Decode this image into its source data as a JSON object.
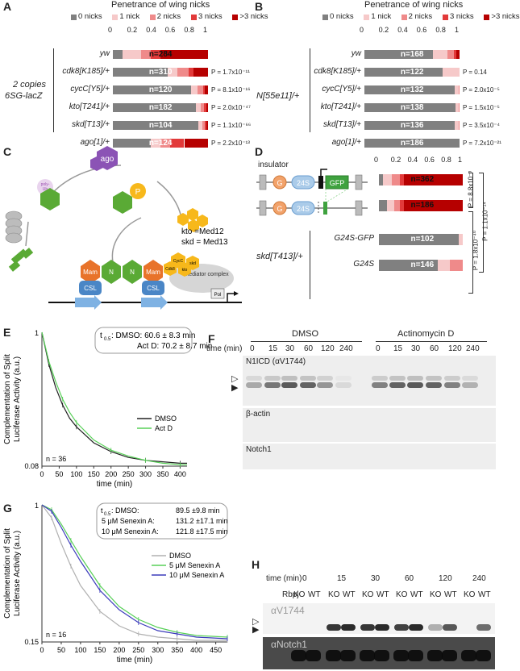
{
  "panelA": {
    "letter": "A",
    "title": "Penetrance of wing nicks",
    "legend": [
      "0 nicks",
      "1 nick",
      "2 nicks",
      "3 nicks",
      ">3 nicks"
    ],
    "legend_colors": [
      "#808080",
      "#f6c9c9",
      "#ef8a8a",
      "#e23a3a",
      "#b60000"
    ],
    "ticks": [
      "0",
      "0.2",
      "0.4",
      "0.6",
      "0.8",
      "1"
    ],
    "group_label_line1": "2 copies",
    "group_label_line2": "6SG-lacZ",
    "rows": [
      {
        "genotype": "yw",
        "n": "n=284",
        "fractions": [
          0.1,
          0.2,
          0.1,
          0.1,
          0.5
        ],
        "p": ""
      },
      {
        "genotype": "cdk8[K185]/+",
        "n": "n=310",
        "fractions": [
          0.58,
          0.1,
          0.12,
          0.05,
          0.15
        ],
        "p": "P = 1.7x10⁻¹¹"
      },
      {
        "genotype": "cycC[Y5]/+",
        "n": "n=120",
        "fractions": [
          0.82,
          0.07,
          0.06,
          0.02,
          0.03
        ],
        "p": "P = 8.1x10⁻¹⁶"
      },
      {
        "genotype": "kto[T241]/+",
        "n": "n=182",
        "fractions": [
          0.87,
          0.05,
          0.04,
          0.02,
          0.02
        ],
        "p": "P = 2.0x10⁻⁴⁷"
      },
      {
        "genotype": "skd[T13]/+",
        "n": "n=104",
        "fractions": [
          0.9,
          0.04,
          0.03,
          0.01,
          0.02
        ],
        "p": "P = 1.1x10⁻⁶⁶"
      },
      {
        "genotype": "ago[1]/+",
        "n": "n=124",
        "fractions": [
          0.4,
          0.1,
          0.1,
          0.15,
          0.25
        ],
        "p": "P = 2.2x10⁻¹³"
      }
    ]
  },
  "panelB": {
    "letter": "B",
    "title": "Penetrance of wing nicks",
    "legend": [
      "0 nicks",
      "1 nick",
      "2 nicks",
      "3 nicks",
      ">3 nicks"
    ],
    "ticks": [
      "0",
      "0.2",
      "0.4",
      "0.6",
      "0.8",
      "1"
    ],
    "group_label": "N[55e11]/+",
    "rows": [
      {
        "genotype": "yw",
        "n": "n=168",
        "fractions": [
          0.72,
          0.15,
          0.07,
          0.03,
          0.03
        ],
        "p": ""
      },
      {
        "genotype": "cdk8[K185]/+",
        "n": "n=122",
        "fractions": [
          0.82,
          0.18,
          0,
          0,
          0
        ],
        "p": "P = 0.14"
      },
      {
        "genotype": "cycC[Y5]/+",
        "n": "n=132",
        "fractions": [
          0.95,
          0.04,
          0.01,
          0,
          0
        ],
        "p": "P = 2.0x10⁻⁵"
      },
      {
        "genotype": "kto[T241]/+",
        "n": "n=138",
        "fractions": [
          0.96,
          0.03,
          0.01,
          0,
          0
        ],
        "p": "P = 1.5x10⁻⁵"
      },
      {
        "genotype": "skd[T13]/+",
        "n": "n=136",
        "fractions": [
          0.95,
          0.04,
          0.01,
          0,
          0
        ],
        "p": "P = 3.5x10⁻⁴"
      },
      {
        "genotype": "ago[1]/+",
        "n": "n=186",
        "fractions": [
          1.0,
          0,
          0,
          0,
          0
        ],
        "p": "P = 7.2x10⁻²¹"
      }
    ]
  },
  "panelC": {
    "letter": "C",
    "labels": {
      "ago": "ago",
      "p": "P",
      "polyub": "poly-Ub",
      "kto_eq": "kto =Med12",
      "skd_eq": "skd = Med13",
      "mam": "Mam",
      "n": "N",
      "csl": "CSL",
      "cycc": "CycC",
      "cdk8": "Cdk8",
      "skd": "skd",
      "kto": "kto",
      "mediator": "Mediator complex",
      "pol": "Pol"
    }
  },
  "panelD": {
    "letter": "D",
    "insulator": "insulator",
    "g": "G",
    "s24": "24S",
    "gfp": "GFP",
    "ticks": [
      "0",
      "0.2",
      "0.4",
      "0.6",
      "0.8",
      "1"
    ],
    "group_label": "skd[T413]/+",
    "rows": [
      {
        "label": "",
        "n": "n=362",
        "fractions": [
          0.05,
          0.1,
          0.1,
          0.05,
          0.7
        ]
      },
      {
        "label": "",
        "n": "n=186",
        "fractions": [
          0.1,
          0.08,
          0.07,
          0.05,
          0.7
        ]
      },
      {
        "label": "G24S-GFP",
        "n": "n=102",
        "fractions": [
          0.95,
          0.05,
          0,
          0,
          0
        ]
      },
      {
        "label": "G24S",
        "n": "n=146",
        "fractions": [
          0.7,
          0.15,
          0.15,
          0,
          0
        ]
      }
    ],
    "pvals": [
      "P = 8.8x10⁻³",
      "P = 1.1x10⁻¹⁴",
      "P = 1.8x10⁻⁴⁰"
    ]
  },
  "panelE": {
    "letter": "E",
    "chart_data": {
      "type": "line",
      "ylabel": "Complementation of Split Luciferase Activity (a.u.)",
      "xlabel": "time (min)",
      "xlim": [
        0,
        420
      ],
      "ylim": [
        0.08,
        1
      ],
      "xticks": [
        "0",
        "50",
        "100",
        "150",
        "200",
        "250",
        "300",
        "350",
        "400"
      ],
      "ytick_top": "1",
      "ytick_bottom": "0.08",
      "annotation_t": "t",
      "annotation_sub": "0.5",
      "annotation_lines": [
        ": DMSO: 60.6 ± 8.3  min",
        "Act D:  70.2 ± 8.7 min"
      ],
      "n_label": "n = 36",
      "series": [
        {
          "name": "DMSO",
          "color": "#222222",
          "x": [
            0,
            20,
            40,
            60,
            80,
            100,
            150,
            200,
            250,
            300,
            350,
            400,
            420
          ],
          "y": [
            1,
            0.78,
            0.62,
            0.5,
            0.41,
            0.35,
            0.24,
            0.18,
            0.14,
            0.12,
            0.11,
            0.1,
            0.1
          ]
        },
        {
          "name": "Act D",
          "color": "#58d058",
          "x": [
            0,
            20,
            40,
            60,
            80,
            100,
            150,
            200,
            250,
            300,
            350,
            400,
            420
          ],
          "y": [
            1,
            0.8,
            0.66,
            0.54,
            0.45,
            0.38,
            0.26,
            0.19,
            0.15,
            0.12,
            0.1,
            0.09,
            0.09
          ]
        }
      ]
    }
  },
  "panelF": {
    "letter": "F",
    "group1": "DMSO",
    "group2": "Actinomycin D",
    "time_label": "time (min)",
    "times": [
      "0",
      "15",
      "30",
      "60",
      "120",
      "240",
      "0",
      "15",
      "30",
      "60",
      "120",
      "240"
    ],
    "row1": "N1ICD (αV1744)",
    "row2": "β-actin",
    "row3": "Notch1"
  },
  "panelG": {
    "letter": "G",
    "chart_data": {
      "type": "line",
      "ylabel": "Complementation of Split Luciferase Activity (a.u.)",
      "xlabel": "time (min)",
      "xlim": [
        0,
        480
      ],
      "ylim": [
        0.15,
        1
      ],
      "xticks": [
        "0",
        "50",
        "100",
        "150",
        "200",
        "250",
        "300",
        "350",
        "400",
        "450"
      ],
      "ytick_top": "1",
      "ytick_bottom": "0.15",
      "annotation_t": "t",
      "annotation_sub": "0.5",
      "annotation_rows": [
        {
          "label": ": DMSO:",
          "value": "89.5  ±9.8 min"
        },
        {
          "label": "5 μM Senexin A:",
          "value": "131.2 ±17.1 min"
        },
        {
          "label": "10 μM Senexin A:",
          "value": "121.8 ±17.5 min"
        }
      ],
      "n_label": "n = 16",
      "series": [
        {
          "name": "DMSO",
          "color": "#b0b0b0",
          "x": [
            0,
            25,
            50,
            75,
            100,
            150,
            200,
            250,
            300,
            350,
            400,
            480
          ],
          "y": [
            1,
            0.92,
            0.76,
            0.62,
            0.5,
            0.34,
            0.25,
            0.2,
            0.18,
            0.17,
            0.16,
            0.16
          ]
        },
        {
          "name": "5 μM Senexin A",
          "color": "#58d058",
          "x": [
            0,
            25,
            50,
            75,
            100,
            150,
            200,
            250,
            300,
            350,
            400,
            480
          ],
          "y": [
            1,
            0.97,
            0.88,
            0.78,
            0.68,
            0.5,
            0.37,
            0.29,
            0.24,
            0.21,
            0.19,
            0.18
          ]
        },
        {
          "name": "10 μM Senexin A",
          "color": "#3b3bbb",
          "x": [
            0,
            25,
            50,
            75,
            100,
            150,
            200,
            250,
            300,
            350,
            400,
            480
          ],
          "y": [
            1,
            0.96,
            0.86,
            0.75,
            0.65,
            0.47,
            0.35,
            0.27,
            0.22,
            0.2,
            0.18,
            0.17
          ]
        }
      ]
    }
  },
  "panelH": {
    "letter": "H",
    "time_label": "time (min)",
    "times": [
      "0",
      "15",
      "30",
      "60",
      "120",
      "240"
    ],
    "rbpj": "Rbpj",
    "genotypes": [
      "KO",
      "WT"
    ],
    "row1": "αV1744",
    "row2": "αNotch1"
  }
}
